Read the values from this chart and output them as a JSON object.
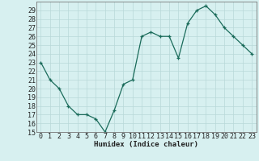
{
  "x": [
    0,
    1,
    2,
    3,
    4,
    5,
    6,
    7,
    8,
    9,
    10,
    11,
    12,
    13,
    14,
    15,
    16,
    17,
    18,
    19,
    20,
    21,
    22,
    23
  ],
  "y": [
    23,
    21,
    20,
    18,
    17,
    17,
    16.5,
    15,
    17.5,
    20.5,
    21,
    26,
    26.5,
    26,
    26,
    23.5,
    27.5,
    29,
    29.5,
    28.5,
    27,
    26,
    25,
    24
  ],
  "line_color": "#1a6b5a",
  "marker_color": "#1a6b5a",
  "bg_color": "#d7f0f0",
  "grid_color": "#b8d8d8",
  "xlabel": "Humidex (Indice chaleur)",
  "ylim": [
    15,
    30
  ],
  "xlim": [
    -0.5,
    23.5
  ],
  "yticks": [
    15,
    16,
    17,
    18,
    19,
    20,
    21,
    22,
    23,
    24,
    25,
    26,
    27,
    28,
    29
  ],
  "xticks": [
    0,
    1,
    2,
    3,
    4,
    5,
    6,
    7,
    8,
    9,
    10,
    11,
    12,
    13,
    14,
    15,
    16,
    17,
    18,
    19,
    20,
    21,
    22,
    23
  ],
  "label_fontsize": 6.5,
  "tick_fontsize": 6.0
}
